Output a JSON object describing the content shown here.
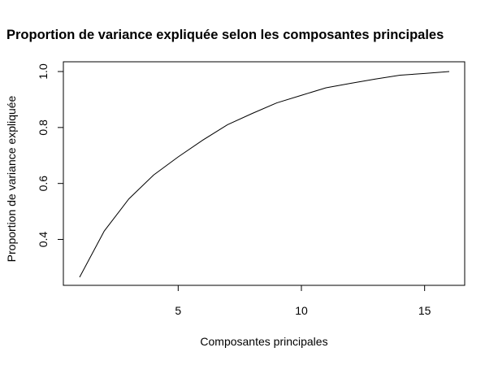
{
  "chart_data": {
    "type": "line",
    "title": "Proportion de variance expliquée selon les composantes principales",
    "xlabel": "Composantes principales",
    "ylabel": "Proportion de variance expliquée",
    "x": [
      1,
      2,
      3,
      4,
      5,
      6,
      7,
      8,
      9,
      10,
      11,
      12,
      13,
      14,
      15,
      16
    ],
    "series": [
      {
        "values": [
          0.265,
          0.43,
          0.545,
          0.63,
          0.695,
          0.755,
          0.81,
          0.85,
          0.888,
          0.915,
          0.942,
          0.958,
          0.973,
          0.987,
          0.993,
          1.0
        ]
      }
    ],
    "xlim": [
      1,
      16
    ],
    "ylim": [
      0.265,
      1.0
    ],
    "xticks": [
      5,
      10,
      15
    ],
    "yticks": [
      0.4,
      0.6,
      0.8,
      1.0
    ],
    "xtick_labels": [
      "5",
      "10",
      "15"
    ],
    "ytick_labels": [
      "0.4",
      "0.6",
      "0.8",
      "1.0"
    ],
    "line_color": "#000000",
    "grid": false,
    "legend": "none"
  }
}
